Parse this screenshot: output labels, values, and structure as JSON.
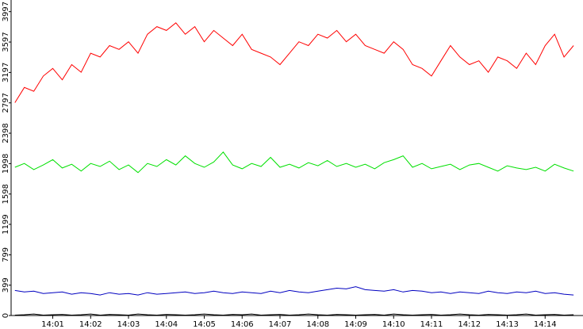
{
  "chart_data": {
    "type": "line",
    "x": [
      0,
      0.25,
      0.5,
      0.75,
      1,
      1.25,
      1.5,
      1.75,
      2,
      2.25,
      2.5,
      2.75,
      3,
      3.25,
      3.5,
      3.75,
      4,
      4.25,
      4.5,
      4.75,
      5,
      5.25,
      5.5,
      5.75,
      6,
      6.25,
      6.5,
      6.75,
      7,
      7.25,
      7.5,
      7.75,
      8,
      8.25,
      8.5,
      8.75,
      9,
      9.25,
      9.5,
      9.75,
      10,
      10.25,
      10.5,
      10.75,
      11,
      11.25,
      11.5,
      11.75,
      12,
      12.25,
      12.5,
      12.75,
      13,
      13.25,
      13.5,
      13.75,
      14,
      14.25,
      14.5,
      14.75
    ],
    "series": [
      {
        "color": "#ff0000",
        "values": [
          2800,
          3000,
          2950,
          3150,
          3250,
          3100,
          3300,
          3200,
          3450,
          3400,
          3550,
          3500,
          3600,
          3450,
          3700,
          3800,
          3750,
          3850,
          3700,
          3800,
          3600,
          3750,
          3650,
          3550,
          3700,
          3500,
          3450,
          3400,
          3300,
          3450,
          3600,
          3550,
          3700,
          3650,
          3750,
          3600,
          3700,
          3550,
          3500,
          3450,
          3600,
          3500,
          3300,
          3250,
          3150,
          3350,
          3550,
          3400,
          3300,
          3350,
          3200,
          3400,
          3350,
          3250,
          3450,
          3300,
          3550,
          3700,
          3400,
          3550
        ]
      },
      {
        "color": "#00e000",
        "values": [
          1950,
          2000,
          1920,
          1980,
          2050,
          1940,
          1990,
          1900,
          2000,
          1960,
          2030,
          1920,
          1980,
          1880,
          2000,
          1960,
          2050,
          1980,
          2100,
          2000,
          1950,
          2020,
          2150,
          1980,
          1930,
          2000,
          1960,
          2080,
          1950,
          1990,
          1940,
          2010,
          1970,
          2040,
          1960,
          2000,
          1950,
          1990,
          1930,
          2010,
          2050,
          2100,
          1950,
          2000,
          1930,
          1960,
          1990,
          1920,
          1980,
          2000,
          1950,
          1900,
          1970,
          1940,
          1920,
          1950,
          1900,
          1990,
          1940,
          1900
        ]
      },
      {
        "color": "#0000c0",
        "values": [
          330,
          310,
          320,
          290,
          300,
          310,
          280,
          300,
          290,
          270,
          300,
          280,
          290,
          270,
          300,
          280,
          290,
          300,
          310,
          290,
          300,
          320,
          300,
          290,
          310,
          300,
          290,
          320,
          300,
          330,
          310,
          300,
          320,
          340,
          360,
          350,
          380,
          340,
          330,
          320,
          340,
          310,
          330,
          320,
          300,
          310,
          290,
          310,
          300,
          290,
          320,
          300,
          290,
          310,
          300,
          320,
          290,
          300,
          280,
          270
        ]
      },
      {
        "color": "#000000",
        "values": [
          5,
          10,
          20,
          5,
          10,
          15,
          5,
          10,
          20,
          5,
          15,
          10,
          5,
          20,
          10,
          5,
          15,
          10,
          5,
          10,
          20,
          10,
          5,
          15,
          10,
          20,
          5,
          10,
          15,
          5,
          10,
          20,
          10,
          5,
          15,
          10,
          5,
          10,
          15,
          5,
          20,
          10,
          5,
          10,
          15,
          5,
          10,
          20,
          10,
          5,
          15,
          10,
          5,
          10,
          20,
          5,
          10,
          15,
          5,
          10
        ]
      }
    ],
    "xlim": [
      -0.1,
      15
    ],
    "ylim": [
      0,
      4150
    ],
    "xticks": [
      {
        "value": 1,
        "label": "14:01"
      },
      {
        "value": 2,
        "label": "14:02"
      },
      {
        "value": 3,
        "label": "14:03"
      },
      {
        "value": 4,
        "label": "14:04"
      },
      {
        "value": 5,
        "label": "14:05"
      },
      {
        "value": 6,
        "label": "14:06"
      },
      {
        "value": 7,
        "label": "14:07"
      },
      {
        "value": 8,
        "label": "14:08"
      },
      {
        "value": 9,
        "label": "14:09"
      },
      {
        "value": 10,
        "label": "14:10"
      },
      {
        "value": 11,
        "label": "14:11"
      },
      {
        "value": 12,
        "label": "14:12"
      },
      {
        "value": 13,
        "label": "14:13"
      },
      {
        "value": 14,
        "label": "14:14"
      }
    ],
    "yticks": [
      0,
      399,
      799,
      1199,
      1598,
      1998,
      2398,
      2797,
      3197,
      3597,
      3997
    ]
  }
}
